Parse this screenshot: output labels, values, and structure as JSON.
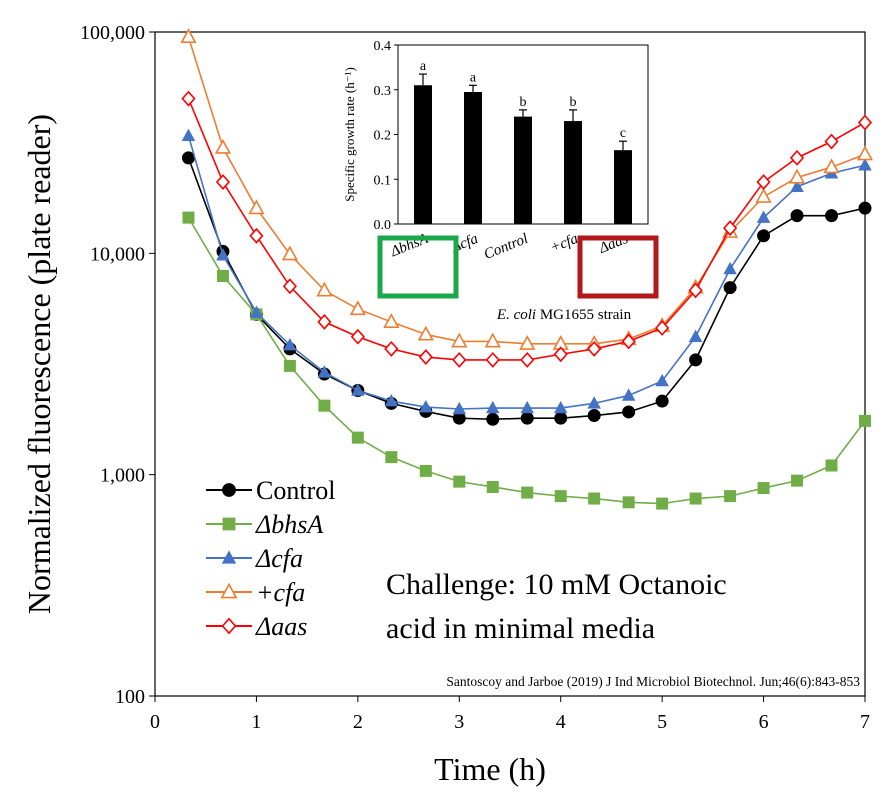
{
  "chart_data": [
    {
      "type": "line",
      "ylabel": "Normalized fluorescence (plate reader)",
      "xlabel": "Time (h)",
      "xlim": [
        0,
        7
      ],
      "ylim": [
        100,
        100000
      ],
      "yscale": "log",
      "grid": false,
      "legend_position": "bottom-left",
      "x_ticks": [
        "0",
        "1",
        "2",
        "3",
        "4",
        "5",
        "6",
        "7"
      ],
      "y_ticks": [
        "100",
        "1,000",
        "10,000",
        "100,000"
      ],
      "x": [
        0.33,
        0.67,
        1.0,
        1.33,
        1.67,
        2.0,
        2.33,
        2.67,
        3.0,
        3.33,
        3.67,
        4.0,
        4.33,
        4.67,
        5.0,
        5.33,
        5.67,
        6.0,
        6.33,
        6.67,
        7.0
      ],
      "series": [
        {
          "name": "Control",
          "marker": "circle-filled",
          "color": "#000000",
          "values": [
            27000,
            10200,
            5300,
            3700,
            2850,
            2400,
            2100,
            1930,
            1800,
            1780,
            1800,
            1800,
            1850,
            1920,
            2150,
            3300,
            7000,
            12000,
            14800,
            14800,
            16000
          ]
        },
        {
          "name": "ΔbhsA",
          "marker": "square-filled",
          "color": "#70ad47",
          "values": [
            14500,
            7900,
            5300,
            3100,
            2050,
            1470,
            1200,
            1040,
            930,
            880,
            830,
            800,
            780,
            750,
            740,
            780,
            800,
            870,
            940,
            1100,
            1750
          ]
        },
        {
          "name": "Δcfa",
          "marker": "triangle-filled",
          "color": "#4472c4",
          "values": [
            34000,
            9800,
            5400,
            3850,
            2900,
            2400,
            2150,
            2020,
            1980,
            2000,
            2000,
            2000,
            2100,
            2280,
            2650,
            4200,
            8500,
            14500,
            20000,
            23000,
            25000
          ]
        },
        {
          "name": "+cfa",
          "marker": "triangle-open",
          "color": "#ed7d31",
          "values": [
            95000,
            30000,
            16000,
            9900,
            6800,
            5600,
            4900,
            4300,
            4000,
            4000,
            3900,
            3900,
            3900,
            4100,
            4700,
            7000,
            12500,
            18000,
            22000,
            24500,
            28000
          ]
        },
        {
          "name": "Δaas",
          "marker": "diamond-open",
          "color": "#ff0000",
          "values": [
            50000,
            21000,
            12000,
            7100,
            4900,
            4200,
            3700,
            3400,
            3300,
            3300,
            3300,
            3500,
            3700,
            4000,
            4600,
            6800,
            13000,
            21000,
            27000,
            32000,
            39000
          ]
        }
      ],
      "annotation": "Challenge: 10 mM Octanoic acid in minimal media",
      "citation": "Santoscoy and Jarboe (2019) J Ind Microbiol Biotechnol. Jun;46(6):843-853",
      "inset": {
        "type": "bar",
        "ylabel": "Specific growth rate (h⁻¹)",
        "xlabel_prefix": "E. coli",
        "xlabel_suffix": " MG1655 strain",
        "ylim": [
          0,
          0.4
        ],
        "y_ticks": [
          "0.0",
          "0.1",
          "0.2",
          "0.3",
          "0.4"
        ],
        "categories": [
          "ΔbhsA",
          "Δcfa",
          "Control",
          "+cfa",
          "Δaas"
        ],
        "values": [
          0.31,
          0.295,
          0.24,
          0.23,
          0.165
        ],
        "errors": [
          0.025,
          0.015,
          0.015,
          0.025,
          0.02
        ],
        "letters": [
          "a",
          "a",
          "b",
          "b",
          "c"
        ],
        "highlight_boxes": [
          {
            "category": "ΔbhsA",
            "color": "#1aa84b"
          },
          {
            "category": "Δaas",
            "color": "#b3161b"
          }
        ],
        "bar_color": "#000000"
      }
    }
  ]
}
